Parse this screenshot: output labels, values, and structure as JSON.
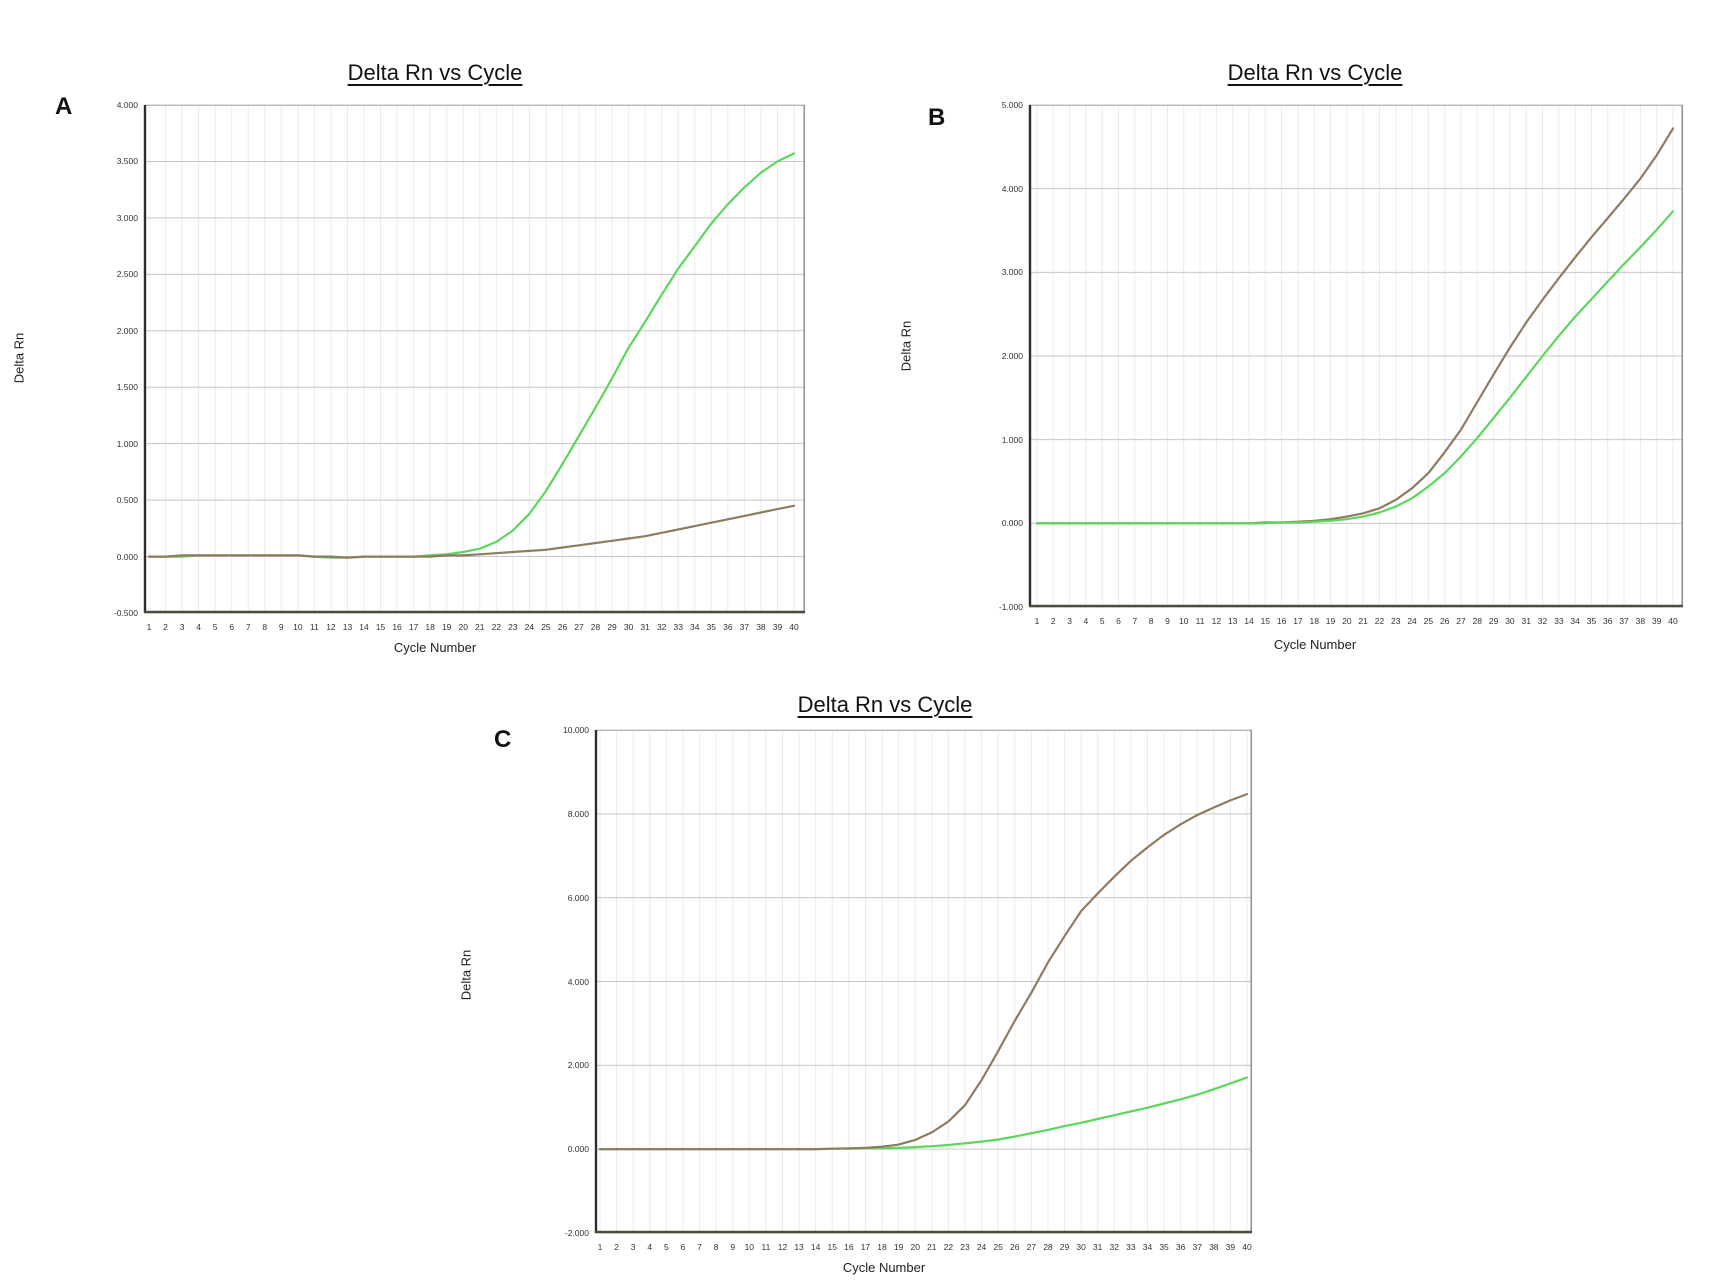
{
  "figure": {
    "background": "#ffffff",
    "shared_title": "Delta Rn vs Cycle",
    "shared_xlabel": "Cycle Number",
    "shared_ylabel": "Delta Rn"
  },
  "colors": {
    "green_series": "#5cd65c",
    "brown_series": "#8f7a62",
    "grid_major": "#c6c6c6",
    "grid_minor": "#ebebeb",
    "axis_left": "#2d2d2d",
    "axis_bottom": "#46503a",
    "axis_right": "#8f8f8f",
    "axis_top": "#b8b8b8",
    "text": "#1a1a1a"
  },
  "chart_data": [
    {
      "type": "line",
      "panel_label": "A",
      "title": "Delta Rn vs Cycle",
      "xlabel": "Cycle Number",
      "ylabel": "Delta Rn",
      "grid": true,
      "legend": "none",
      "ymin": -0.5,
      "ymax": 4.0,
      "ystep": 0.5,
      "y_tick_labels": [
        "4.000",
        "3.500",
        "3.000",
        "2.500",
        "2.000",
        "1.500",
        "1.000",
        "0.500",
        "0.000",
        "-0.500"
      ],
      "x_tick_labels": [
        "1",
        "2",
        "3",
        "4",
        "5",
        "6",
        "7",
        "8",
        "9",
        "10",
        "11",
        "12",
        "13",
        "14",
        "15",
        "16",
        "17",
        "18",
        "19",
        "20",
        "21",
        "22",
        "23",
        "24",
        "25",
        "26",
        "27",
        "28",
        "29",
        "30",
        "31",
        "32",
        "33",
        "34",
        "35",
        "36",
        "37",
        "38",
        "39",
        "40"
      ],
      "series": [
        {
          "name": "green-amplification-curve",
          "color_key": "green_series",
          "values": [
            0.0,
            0.0,
            0.0,
            0.01,
            0.01,
            0.01,
            0.01,
            0.01,
            0.01,
            0.01,
            0.0,
            -0.01,
            -0.01,
            0.0,
            0.0,
            0.0,
            0.0,
            0.01,
            0.02,
            0.04,
            0.07,
            0.13,
            0.23,
            0.38,
            0.58,
            0.82,
            1.07,
            1.32,
            1.58,
            1.85,
            2.08,
            2.32,
            2.55,
            2.75,
            2.95,
            3.12,
            3.27,
            3.4,
            3.5,
            3.57
          ]
        },
        {
          "name": "brown-amplification-curve",
          "color_key": "brown_series",
          "values": [
            0.0,
            0.0,
            0.01,
            0.01,
            0.01,
            0.01,
            0.01,
            0.01,
            0.01,
            0.01,
            0.0,
            0.0,
            -0.01,
            0.0,
            0.0,
            0.0,
            0.0,
            0.0,
            0.01,
            0.01,
            0.02,
            0.03,
            0.04,
            0.05,
            0.06,
            0.08,
            0.1,
            0.12,
            0.14,
            0.16,
            0.18,
            0.21,
            0.24,
            0.27,
            0.3,
            0.33,
            0.36,
            0.39,
            0.42,
            0.45
          ]
        }
      ]
    },
    {
      "type": "line",
      "panel_label": "B",
      "title": "Delta Rn vs Cycle",
      "xlabel": "Cycle Number",
      "ylabel": "Delta Rn",
      "grid": true,
      "legend": "none",
      "ymin": -1.0,
      "ymax": 5.0,
      "ystep": 1.0,
      "y_tick_labels": [
        "5.000",
        "4.000",
        "3.000",
        "2.000",
        "1.000",
        "0.000",
        "-1.000"
      ],
      "x_tick_labels": [
        "1",
        "2",
        "3",
        "4",
        "5",
        "6",
        "7",
        "8",
        "9",
        "10",
        "11",
        "12",
        "13",
        "14",
        "15",
        "16",
        "17",
        "18",
        "19",
        "20",
        "21",
        "22",
        "23",
        "24",
        "25",
        "26",
        "27",
        "28",
        "29",
        "30",
        "31",
        "32",
        "33",
        "34",
        "35",
        "36",
        "37",
        "38",
        "39",
        "40"
      ],
      "series": [
        {
          "name": "brown-amplification-curve",
          "color_key": "brown_series",
          "values": [
            0.0,
            0.0,
            0.0,
            0.0,
            0.0,
            0.0,
            0.0,
            0.0,
            0.0,
            0.0,
            0.0,
            0.0,
            0.0,
            0.0,
            0.01,
            0.01,
            0.02,
            0.03,
            0.05,
            0.08,
            0.12,
            0.18,
            0.28,
            0.42,
            0.6,
            0.85,
            1.12,
            1.45,
            1.78,
            2.1,
            2.4,
            2.67,
            2.93,
            3.18,
            3.42,
            3.65,
            3.88,
            4.12,
            4.4,
            4.72
          ]
        },
        {
          "name": "green-amplification-curve",
          "color_key": "green_series",
          "values": [
            0.0,
            0.0,
            0.0,
            0.0,
            0.0,
            0.0,
            0.0,
            0.0,
            0.0,
            0.0,
            0.0,
            0.0,
            0.0,
            0.0,
            0.0,
            0.01,
            0.01,
            0.02,
            0.03,
            0.05,
            0.08,
            0.13,
            0.2,
            0.3,
            0.44,
            0.6,
            0.8,
            1.02,
            1.26,
            1.5,
            1.75,
            2.0,
            2.24,
            2.47,
            2.68,
            2.89,
            3.1,
            3.3,
            3.51,
            3.73
          ]
        }
      ]
    },
    {
      "type": "line",
      "panel_label": "C",
      "title": "Delta Rn vs Cycle",
      "xlabel": "Cycle Number",
      "ylabel": "Delta Rn",
      "grid": true,
      "legend": "none",
      "ymin": -2.0,
      "ymax": 10.0,
      "ystep": 2.0,
      "y_tick_labels": [
        "10.000",
        "8.000",
        "6.000",
        "4.000",
        "2.000",
        "0.000",
        "-2.000"
      ],
      "x_tick_labels": [
        "1",
        "2",
        "3",
        "4",
        "5",
        "6",
        "7",
        "8",
        "9",
        "10",
        "11",
        "12",
        "13",
        "14",
        "15",
        "16",
        "17",
        "18",
        "19",
        "20",
        "21",
        "22",
        "23",
        "24",
        "25",
        "26",
        "27",
        "28",
        "29",
        "30",
        "31",
        "32",
        "33",
        "34",
        "35",
        "36",
        "37",
        "38",
        "39",
        "40"
      ],
      "series": [
        {
          "name": "green-amplification-curve",
          "color_key": "green_series",
          "values": [
            0.0,
            0.0,
            0.0,
            0.0,
            0.0,
            0.0,
            0.0,
            0.0,
            0.0,
            0.0,
            0.0,
            0.0,
            0.0,
            0.0,
            0.01,
            0.01,
            0.02,
            0.02,
            0.03,
            0.05,
            0.07,
            0.1,
            0.14,
            0.18,
            0.23,
            0.3,
            0.38,
            0.46,
            0.55,
            0.63,
            0.72,
            0.81,
            0.9,
            0.99,
            1.09,
            1.19,
            1.3,
            1.43,
            1.57,
            1.71
          ]
        },
        {
          "name": "brown-amplification-curve",
          "color_key": "brown_series",
          "values": [
            0.0,
            0.0,
            0.0,
            0.0,
            0.0,
            0.0,
            0.0,
            0.0,
            0.0,
            0.0,
            0.0,
            0.0,
            0.0,
            0.0,
            0.01,
            0.02,
            0.03,
            0.06,
            0.11,
            0.22,
            0.4,
            0.66,
            1.05,
            1.65,
            2.34,
            3.06,
            3.73,
            4.45,
            5.08,
            5.68,
            6.1,
            6.5,
            6.88,
            7.2,
            7.5,
            7.75,
            7.97,
            8.15,
            8.32,
            8.47
          ]
        }
      ]
    }
  ]
}
